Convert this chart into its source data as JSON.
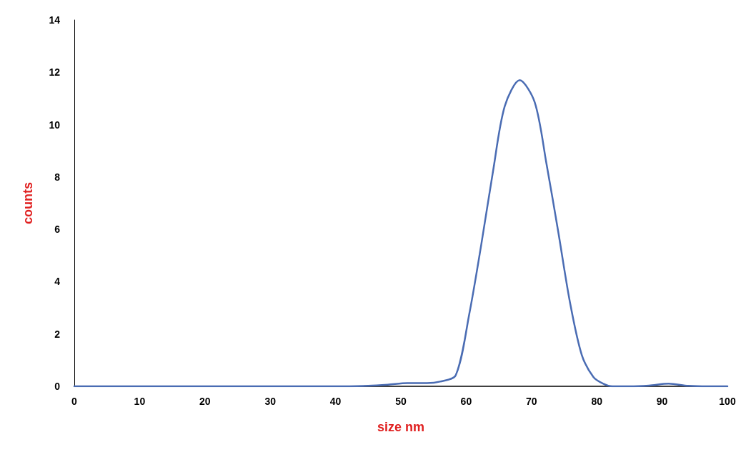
{
  "chart_data": {
    "type": "line",
    "xlabel": "size nm",
    "ylabel": "counts",
    "x": [
      0,
      10,
      20,
      30,
      40,
      45,
      48,
      51,
      54,
      56,
      58.4,
      60.5,
      62.3,
      64.1,
      65.9,
      68.2,
      70.5,
      72.3,
      74.1,
      75.9,
      77.7,
      79.5,
      81,
      82.4,
      85,
      88,
      91,
      94,
      97,
      100
    ],
    "series": [
      {
        "color": "#4a6cb3",
        "values": [
          0,
          0,
          0,
          0,
          0,
          0.02,
          0.06,
          0.12,
          0.12,
          0.18,
          0.42,
          2.8,
          5.4,
          8.2,
          10.7,
          11.7,
          10.85,
          8.5,
          5.9,
          3.2,
          1.2,
          0.35,
          0.1,
          0,
          0,
          0.03,
          0.1,
          0.02,
          0,
          0
        ]
      }
    ],
    "xlim": [
      0,
      100
    ],
    "xticks": [
      0,
      10,
      20,
      30,
      40,
      50,
      60,
      70,
      80,
      90,
      100
    ],
    "ylim": [
      0,
      14
    ],
    "yticks": [
      0,
      2,
      4,
      6,
      8,
      10,
      12,
      14
    ],
    "grid": false,
    "marker": "none",
    "line_style": "solid"
  }
}
